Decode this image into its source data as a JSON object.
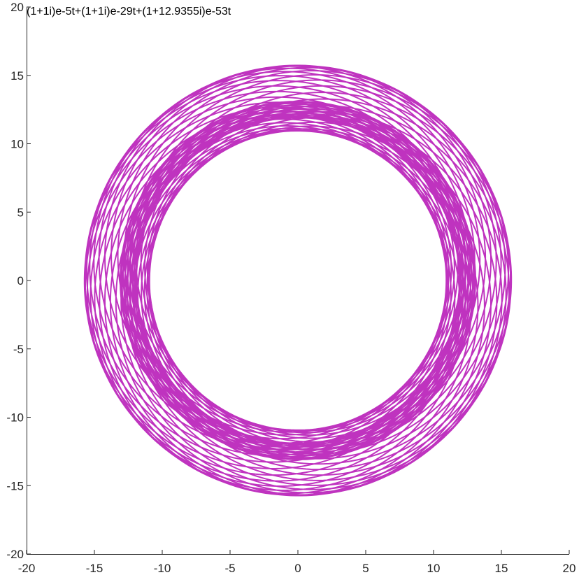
{
  "chart_data": {
    "type": "line",
    "title": "(1+1i)e-5t+(1+1i)e-29t+(1+12.9355i)e-53t",
    "xlabel": "",
    "ylabel": "",
    "xlim": [
      -20,
      20
    ],
    "ylim": [
      -20,
      20
    ],
    "xticks": [
      "-20",
      "-15",
      "-10",
      "-5",
      "0",
      "5",
      "10",
      "15",
      "20"
    ],
    "yticks": [
      "-20",
      "-15",
      "-10",
      "-5",
      "0",
      "5",
      "10",
      "15",
      "20"
    ],
    "grid": false,
    "legend": "none",
    "series": [
      {
        "color": "#bf33bf",
        "function": "z(t) = (1+1i)e^(-5it) + (1+1i)e^(-29it) + (1+12.9355i)e^(-53it)",
        "terms": [
          {
            "coef_re": 1,
            "coef_im": 1,
            "freq": -5
          },
          {
            "coef_re": 1,
            "coef_im": 1,
            "freq": -29
          },
          {
            "coef_re": 1,
            "coef_im": 12.9355,
            "freq": -53
          }
        ],
        "t_range": [
          0,
          6.283185307
        ]
      }
    ]
  }
}
